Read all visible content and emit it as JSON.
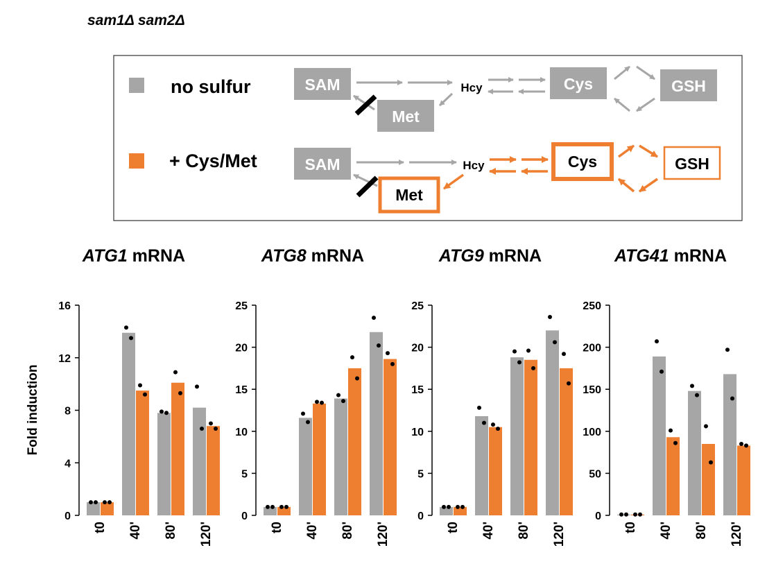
{
  "figure_title": "sam1Δ sam2Δ",
  "colors": {
    "gray": "#A6A6A6",
    "orange": "#EE7F31",
    "dot": "#000000"
  },
  "pathway": {
    "legend": [
      {
        "label": "no sulfur",
        "color": "#A6A6A6"
      },
      {
        "label": "+ Cys/Met",
        "color": "#EE7F31"
      }
    ],
    "no_sulfur": {
      "sam": "SAM",
      "met": "Met",
      "hcy": "Hcy",
      "cys": "Cys",
      "gsh": "GSH"
    },
    "cys_met": {
      "sam": "SAM",
      "met": "Met",
      "hcy": "Hcy",
      "cys": "Cys",
      "gsh": "GSH"
    }
  },
  "chart_data": [
    {
      "type": "bar",
      "title_gene": "ATG1",
      "title_suffix": " mRNA",
      "ylabel": "Fold induction",
      "categories": [
        "t0",
        "40'",
        "80'",
        "120'"
      ],
      "ylim": [
        0,
        16
      ],
      "yticks": [
        0,
        4,
        8,
        12,
        16
      ],
      "series": [
        {
          "name": "no sulfur",
          "color": "#A6A6A6",
          "values": [
            1,
            13.9,
            7.8,
            8.2
          ],
          "points": [
            [
              1,
              1
            ],
            [
              14.3,
              13.5
            ],
            [
              7.9,
              7.8
            ],
            [
              9.8,
              6.6
            ]
          ]
        },
        {
          "name": "+ Cys/Met",
          "color": "#EE7F31",
          "values": [
            1,
            9.5,
            10.1,
            6.8
          ],
          "points": [
            [
              1,
              1
            ],
            [
              9.9,
              9.2
            ],
            [
              10.9,
              9.3
            ],
            [
              7.0,
              6.6
            ]
          ]
        }
      ]
    },
    {
      "type": "bar",
      "title_gene": "ATG8",
      "title_suffix": " mRNA",
      "ylabel": "",
      "categories": [
        "t0",
        "40'",
        "80'",
        "120'"
      ],
      "ylim": [
        0,
        25
      ],
      "yticks": [
        0,
        5,
        10,
        15,
        20,
        25
      ],
      "series": [
        {
          "name": "no sulfur",
          "color": "#A6A6A6",
          "values": [
            1,
            11.6,
            13.9,
            21.8
          ],
          "points": [
            [
              1,
              1
            ],
            [
              12.1,
              11.1
            ],
            [
              14.3,
              13.6
            ],
            [
              23.5,
              20.2
            ]
          ]
        },
        {
          "name": "+ Cys/Met",
          "color": "#EE7F31",
          "values": [
            1,
            13.3,
            17.5,
            18.6
          ],
          "points": [
            [
              1,
              1
            ],
            [
              13.5,
              13.4
            ],
            [
              18.8,
              16.3
            ],
            [
              19.3,
              18.0
            ]
          ]
        }
      ]
    },
    {
      "type": "bar",
      "title_gene": "ATG9",
      "title_suffix": " mRNA",
      "ylabel": "",
      "categories": [
        "t0",
        "40'",
        "80'",
        "120'"
      ],
      "ylim": [
        0,
        25
      ],
      "yticks": [
        0,
        5,
        10,
        15,
        20,
        25
      ],
      "series": [
        {
          "name": "no sulfur",
          "color": "#A6A6A6",
          "values": [
            1,
            11.8,
            18.8,
            22.0
          ],
          "points": [
            [
              1,
              1
            ],
            [
              12.8,
              11.0
            ],
            [
              19.5,
              18.2
            ],
            [
              23.6,
              20.6
            ]
          ]
        },
        {
          "name": "+ Cys/Met",
          "color": "#EE7F31",
          "values": [
            1,
            10.5,
            18.5,
            17.5
          ],
          "points": [
            [
              1,
              1
            ],
            [
              10.8,
              10.3
            ],
            [
              19.6,
              17.5
            ],
            [
              19.2,
              15.7
            ]
          ]
        }
      ]
    },
    {
      "type": "bar",
      "title_gene": "ATG41",
      "title_suffix": " mRNA",
      "ylabel": "",
      "categories": [
        "t0",
        "40'",
        "80'",
        "120'"
      ],
      "ylim": [
        0,
        250
      ],
      "yticks": [
        0,
        50,
        100,
        150,
        200,
        250
      ],
      "series": [
        {
          "name": "no sulfur",
          "color": "#A6A6A6",
          "values": [
            1,
            189,
            148,
            168
          ],
          "points": [
            [
              1,
              1
            ],
            [
              207,
              171
            ],
            [
              154,
              143
            ],
            [
              197,
              139
            ]
          ]
        },
        {
          "name": "+ Cys/Met",
          "color": "#EE7F31",
          "values": [
            1,
            93,
            85,
            83
          ],
          "points": [
            [
              1,
              1
            ],
            [
              101,
              86
            ],
            [
              106,
              63
            ],
            [
              85,
              83
            ]
          ]
        }
      ]
    }
  ]
}
